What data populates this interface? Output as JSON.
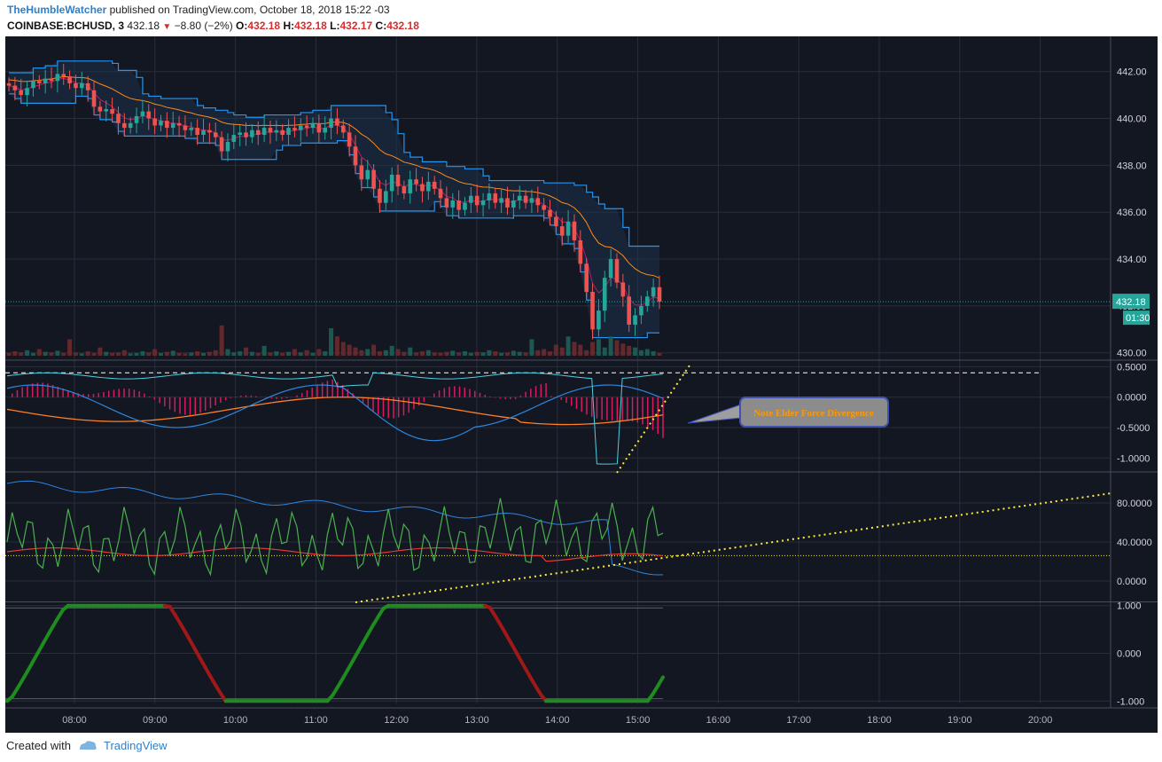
{
  "header": {
    "author": "TheHumbleWatcher",
    "published_text": "published on TradingView.com, October 18, 2018 15:22 -03",
    "symbol": "COINBASE:BCHUSD, 3",
    "last_price": "432.18",
    "change": "−8.80 (−2%)",
    "o_label": "O:",
    "o_value": "432.18",
    "h_label": "H:",
    "h_value": "432.18",
    "l_label": "L:",
    "l_value": "432.17",
    "c_label": "C:",
    "c_value": "432.18"
  },
  "footer": {
    "created_with": "Created with",
    "brand": "TradingView"
  },
  "colors": {
    "background": "#131722",
    "grid": "#2a2e39",
    "up": "#26a69a",
    "down": "#ef5350",
    "price_line": "#26a69a",
    "annotation": "#ffeb3b",
    "callout_fill": "#3d3d7a",
    "callout_text": "#ff9800",
    "stoch_up": "#1e8c1e",
    "stoch_down": "#a01818"
  },
  "chart_data": [
    {
      "type": "candlestick",
      "panel": "price",
      "x_ticks": [
        "08:00",
        "09:00",
        "10:00",
        "11:00",
        "12:00",
        "13:00",
        "14:00",
        "15:00",
        "16:00",
        "17:00",
        "18:00",
        "19:00",
        "20:00"
      ],
      "y_ticks": [
        "442.00",
        "440.00",
        "438.00",
        "436.00",
        "434.00",
        "432.00",
        "430.00"
      ],
      "ylim": [
        429.8,
        443.2
      ],
      "current_price_label": "432.18",
      "countdown_label": "01:30",
      "close_series": [
        441.4,
        441.2,
        441.0,
        441.3,
        441.6,
        441.5,
        441.7,
        441.6,
        441.9,
        441.8,
        441.5,
        441.3,
        441.5,
        441.2,
        440.5,
        440.3,
        440.4,
        440.2,
        439.8,
        439.6,
        439.8,
        440.1,
        440.3,
        440.0,
        439.7,
        439.9,
        439.6,
        439.8,
        439.7,
        439.5,
        439.6,
        439.3,
        439.5,
        439.4,
        439.2,
        438.6,
        439.0,
        439.3,
        439.4,
        439.2,
        439.5,
        439.3,
        439.6,
        439.4,
        439.5,
        439.3,
        439.6,
        439.5,
        439.7,
        439.6,
        439.8,
        439.4,
        439.6,
        440.0,
        439.7,
        439.4,
        438.8,
        438.0,
        437.4,
        437.8,
        437.0,
        436.4,
        436.9,
        437.6,
        437.1,
        436.8,
        437.4,
        437.2,
        436.9,
        437.3,
        437.0,
        436.6,
        436.2,
        436.5,
        436.1,
        436.4,
        436.7,
        436.3,
        436.5,
        436.8,
        436.4,
        436.6,
        436.2,
        436.5,
        436.7,
        436.4,
        436.6,
        436.3,
        436.1,
        435.8,
        435.4,
        435.0,
        435.6,
        434.8,
        433.8,
        432.6,
        431.0,
        431.8,
        433.2,
        434.0,
        433.0,
        432.4,
        431.2,
        431.6,
        432.0,
        432.4,
        432.8,
        432.18
      ],
      "volume_rel": [
        0.05,
        0.08,
        0.06,
        0.1,
        0.05,
        0.12,
        0.07,
        0.06,
        0.09,
        0.05,
        0.3,
        0.06,
        0.04,
        0.08,
        0.05,
        0.15,
        0.07,
        0.05,
        0.06,
        0.1,
        0.04,
        0.05,
        0.08,
        0.06,
        0.12,
        0.05,
        0.07,
        0.09,
        0.05,
        0.04,
        0.06,
        0.08,
        0.05,
        0.07,
        0.1,
        0.55,
        0.12,
        0.06,
        0.08,
        0.15,
        0.07,
        0.05,
        0.18,
        0.06,
        0.08,
        0.05,
        0.07,
        0.12,
        0.06,
        0.1,
        0.05,
        0.12,
        0.08,
        0.5,
        0.35,
        0.25,
        0.2,
        0.15,
        0.1,
        0.12,
        0.2,
        0.08,
        0.1,
        0.18,
        0.12,
        0.07,
        0.15,
        0.06,
        0.08,
        0.1,
        0.06,
        0.05,
        0.07,
        0.09,
        0.06,
        0.08,
        0.05,
        0.07,
        0.06,
        0.1,
        0.08,
        0.05,
        0.06,
        0.09,
        0.07,
        0.06,
        0.3,
        0.1,
        0.12,
        0.08,
        0.2,
        0.15,
        0.35,
        0.25,
        0.2,
        0.1,
        0.25,
        0.3,
        0.15,
        0.35,
        0.28,
        0.22,
        0.18,
        0.15,
        0.1,
        0.12,
        0.08,
        0.05
      ]
    },
    {
      "type": "line",
      "panel": "elder_force",
      "y_ticks": [
        "0.5000",
        "0.0000",
        "-0.5000",
        "-1.0000"
      ],
      "ylim": [
        -1.2,
        0.55
      ],
      "annotation": "Note Elder Force Divergence"
    },
    {
      "type": "line",
      "panel": "oscillator",
      "y_ticks": [
        "80.0000",
        "40.0000",
        "0.0000"
      ],
      "ylim": [
        -20,
        110
      ]
    },
    {
      "type": "line",
      "panel": "stochastic",
      "y_ticks": [
        "1.000",
        "0.000",
        "-1.000"
      ],
      "ylim": [
        -1.05,
        1.05
      ]
    }
  ]
}
